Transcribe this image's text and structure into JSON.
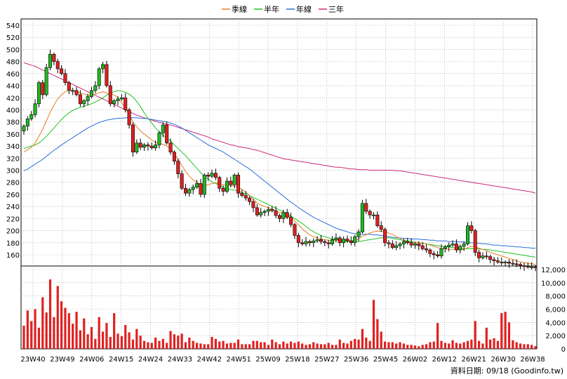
{
  "chart_data": {
    "type": "line",
    "price_axis": {
      "ticks": [
        160,
        180,
        200,
        220,
        240,
        260,
        280,
        300,
        320,
        340,
        360,
        380,
        400,
        420,
        440,
        460,
        480,
        500,
        520,
        540
      ]
    },
    "volume_axis": {
      "ticks": [
        "0",
        "2,000",
        "4,000",
        "6,000",
        "8,000",
        "10,000",
        "12,000"
      ],
      "max": 12000
    },
    "x_ticks": [
      "23W40",
      "23W49",
      "24W06",
      "24W15",
      "24W24",
      "24W33",
      "24W42",
      "24W51",
      "25W09",
      "25W18",
      "25W27",
      "25W36",
      "25W45",
      "26W02",
      "26W12",
      "26W21",
      "26W30",
      "26W38"
    ],
    "legend": [
      {
        "name": "季線",
        "color": "#e67e22"
      },
      {
        "name": "半年",
        "color": "#22c322"
      },
      {
        "name": "年線",
        "color": "#2a6fdc"
      },
      {
        "name": "三年",
        "color": "#cc2a7a"
      }
    ],
    "candles_up_color": "#22b822",
    "candles_down_color": "#e02020",
    "volume_color": "#e02020",
    "close": [
      373,
      385,
      392,
      410,
      445,
      425,
      470,
      492,
      480,
      468,
      460,
      445,
      432,
      432,
      425,
      410,
      415,
      422,
      432,
      440,
      468,
      475,
      440,
      410,
      415,
      418,
      420,
      400,
      375,
      330,
      345,
      338,
      342,
      340,
      337,
      342,
      362,
      375,
      345,
      330,
      315,
      294,
      270,
      262,
      268,
      272,
      278,
      260,
      292,
      290,
      295,
      288,
      270,
      265,
      282,
      276,
      292,
      262,
      258,
      254,
      248,
      238,
      226,
      230,
      232,
      235,
      233,
      225,
      220,
      230,
      222,
      210,
      192,
      180,
      178,
      182,
      180,
      183,
      185,
      182,
      180,
      178,
      185,
      188,
      180,
      186,
      183,
      180,
      190,
      198,
      245,
      232,
      226,
      226,
      208,
      202,
      180,
      178,
      172,
      175,
      178,
      182,
      180,
      176,
      178,
      175,
      170,
      168,
      162,
      160,
      158,
      170,
      173,
      176,
      178,
      168,
      174,
      178,
      208,
      200,
      164,
      155,
      158,
      157,
      152,
      150,
      148,
      147,
      148,
      146,
      145,
      144,
      142,
      141,
      140,
      140,
      139
    ],
    "sma_quarter": [
      330,
      334,
      338,
      345,
      356,
      368,
      382,
      396,
      408,
      418,
      425,
      430,
      433,
      432,
      430,
      428,
      426,
      424,
      424,
      426,
      428,
      430,
      428,
      426,
      425,
      420,
      412,
      402,
      392,
      380,
      372,
      365,
      360,
      355,
      350,
      346,
      344,
      343,
      340,
      335,
      328,
      318,
      308,
      298,
      290,
      284,
      280,
      276,
      275,
      276,
      278,
      279,
      278,
      276,
      275,
      274,
      274,
      272,
      268,
      264,
      258,
      252,
      246,
      242,
      240,
      238,
      236,
      232,
      230,
      229,
      226,
      222,
      216,
      210,
      203,
      198,
      193,
      190,
      188,
      186,
      185,
      184,
      183,
      184,
      184,
      184,
      184,
      183,
      184,
      186,
      191,
      193,
      196,
      198,
      199,
      199,
      198,
      196,
      194,
      190,
      187,
      183,
      181,
      180,
      180,
      180,
      179,
      178,
      176,
      174,
      172,
      170,
      170,
      169,
      169,
      169,
      168,
      169,
      172,
      174,
      173,
      171,
      169,
      167,
      164,
      162,
      160,
      158,
      156,
      154,
      152,
      150,
      148,
      147,
      146,
      145,
      144
    ],
    "sma_half": [
      336,
      338,
      340,
      342,
      345,
      350,
      356,
      363,
      370,
      377,
      384,
      390,
      395,
      399,
      402,
      404,
      406,
      408,
      410,
      413,
      416,
      420,
      424,
      428,
      430,
      432,
      431,
      429,
      426,
      421,
      414,
      405,
      395,
      386,
      378,
      370,
      364,
      358,
      353,
      348,
      342,
      336,
      330,
      324,
      317,
      310,
      303,
      296,
      290,
      285,
      281,
      278,
      275,
      272,
      270,
      268,
      267,
      265,
      263,
      261,
      258,
      255,
      252,
      249,
      246,
      243,
      240,
      237,
      234,
      231,
      228,
      224,
      220,
      216,
      212,
      207,
      202,
      198,
      195,
      192,
      190,
      188,
      186,
      185,
      184,
      183,
      182,
      182,
      182,
      182,
      183,
      184,
      185,
      186,
      187,
      188,
      188,
      188,
      187,
      186,
      185,
      184,
      183,
      182,
      181,
      180,
      179,
      178,
      177,
      176,
      175,
      174,
      174,
      173,
      172,
      171,
      170,
      170,
      170,
      170,
      170,
      170,
      169,
      169,
      168,
      167,
      166,
      165,
      164,
      163,
      162,
      161,
      160,
      159,
      158,
      157,
      156
    ],
    "sma_year": [
      299,
      302,
      306,
      310,
      314,
      318,
      323,
      328,
      333,
      337,
      342,
      346,
      350,
      354,
      358,
      362,
      366,
      370,
      373,
      376,
      379,
      381,
      383,
      384,
      385,
      386,
      386,
      387,
      387,
      387,
      387,
      386,
      386,
      385,
      384,
      383,
      382,
      381,
      380,
      378,
      376,
      373,
      370,
      366,
      362,
      358,
      354,
      350,
      346,
      342,
      339,
      336,
      333,
      330,
      326,
      322,
      318,
      314,
      310,
      306,
      302,
      297,
      292,
      287,
      282,
      277,
      272,
      267,
      262,
      257,
      252,
      247,
      243,
      238,
      234,
      230,
      226,
      222,
      219,
      216,
      213,
      210,
      207,
      204,
      202,
      200,
      198,
      196,
      195,
      194,
      194,
      194,
      194,
      193,
      193,
      192,
      191,
      190,
      189,
      188,
      188,
      187,
      187,
      186,
      186,
      186,
      185,
      185,
      184,
      184,
      183,
      183,
      183,
      182,
      182,
      182,
      181,
      181,
      180,
      180,
      179,
      179,
      178,
      178,
      177,
      176,
      176,
      175,
      175,
      174,
      174,
      173,
      173,
      172,
      172,
      171,
      171
    ],
    "sma_3year": [
      478,
      476,
      474,
      472,
      469,
      466,
      463,
      460,
      457,
      454,
      451,
      448,
      445,
      442,
      439,
      436,
      433,
      430,
      427,
      424,
      421,
      418,
      415,
      412,
      409,
      406,
      403,
      400,
      397,
      394,
      391,
      389,
      387,
      385,
      383,
      381,
      379,
      378,
      376,
      375,
      373,
      371,
      369,
      367,
      365,
      363,
      361,
      359,
      357,
      355,
      352,
      350,
      348,
      346,
      344,
      342,
      341,
      339,
      338,
      337,
      336,
      334,
      333,
      331,
      329,
      327,
      325,
      323,
      321,
      319,
      318,
      317,
      316,
      315,
      314,
      313,
      312,
      311,
      310,
      309,
      308,
      307,
      306,
      305,
      305,
      304,
      303,
      302,
      302,
      301,
      301,
      301,
      300,
      300,
      300,
      300,
      300,
      300,
      300,
      299,
      299,
      298,
      297,
      296,
      295,
      294,
      293,
      292,
      291,
      290,
      289,
      288,
      287,
      286,
      285,
      284,
      283,
      282,
      281,
      280,
      279,
      278,
      277,
      276,
      275,
      274,
      273,
      272,
      271,
      270,
      269,
      268,
      267,
      266,
      265,
      264,
      262
    ],
    "volume": [
      3500,
      5800,
      4200,
      6000,
      3200,
      7800,
      5500,
      10500,
      4800,
      9500,
      7200,
      6200,
      5400,
      3800,
      5600,
      2800,
      4600,
      2200,
      3300,
      1500,
      4800,
      2600,
      3900,
      1800,
      5400,
      2300,
      1900,
      3600,
      2500,
      1400,
      3000,
      2000,
      1200,
      1000,
      900,
      1700,
      1200,
      1500,
      900,
      2700,
      2200,
      2000,
      2300,
      1000,
      1700,
      1200,
      900,
      800,
      700,
      700,
      1800,
      1500,
      1100,
      1200,
      800,
      900,
      900,
      1400,
      700,
      700,
      700,
      1200,
      1200,
      1000,
      1000,
      600,
      1400,
      1000,
      700,
      1100,
      800,
      1100,
      900,
      1100,
      800,
      600,
      700,
      1000,
      800,
      700,
      700,
      900,
      600,
      600,
      1400,
      900,
      800,
      1200,
      1500,
      1400,
      3000,
      1700,
      1200,
      7400,
      4500,
      2600,
      1100,
      1000,
      1000,
      800,
      1000,
      800,
      600,
      600,
      500,
      400,
      600,
      700,
      1000,
      1100,
      3900,
      1200,
      900,
      800,
      1300,
      900,
      800,
      1000,
      1200,
      1400,
      4200,
      1200,
      800,
      3200,
      1400,
      1600,
      1200,
      5400,
      5600,
      4000,
      1300,
      1000,
      800,
      700,
      700,
      600,
      400
    ]
  },
  "footer_text": "資料日期: 09/18 (Goodinfo.tw)"
}
